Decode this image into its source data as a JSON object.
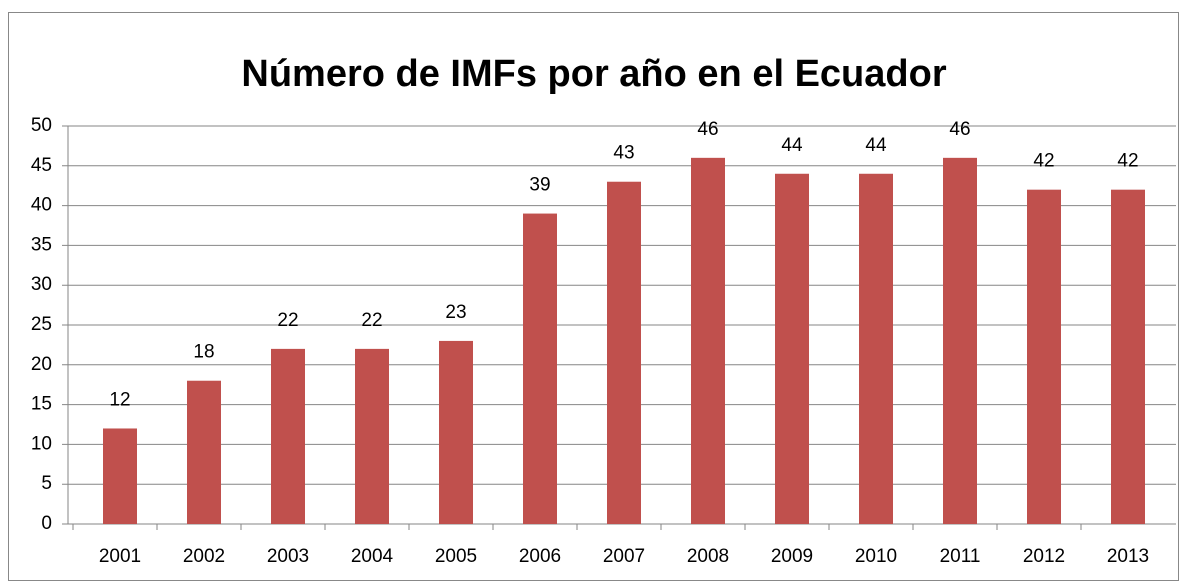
{
  "chart_data": {
    "type": "bar",
    "title": "Número de IMFs por año en el Ecuador",
    "categories": [
      "2001",
      "2002",
      "2003",
      "2004",
      "2005",
      "2006",
      "2007",
      "2008",
      "2009",
      "2010",
      "2011",
      "2012",
      "2013"
    ],
    "values": [
      12,
      18,
      22,
      22,
      23,
      39,
      43,
      46,
      44,
      44,
      46,
      42,
      42
    ],
    "color": "#c0504d",
    "ylim": [
      0,
      50
    ],
    "yticks": [
      0,
      5,
      10,
      15,
      20,
      25,
      30,
      35,
      40,
      45,
      50
    ],
    "grid": true,
    "data_labels": true
  }
}
